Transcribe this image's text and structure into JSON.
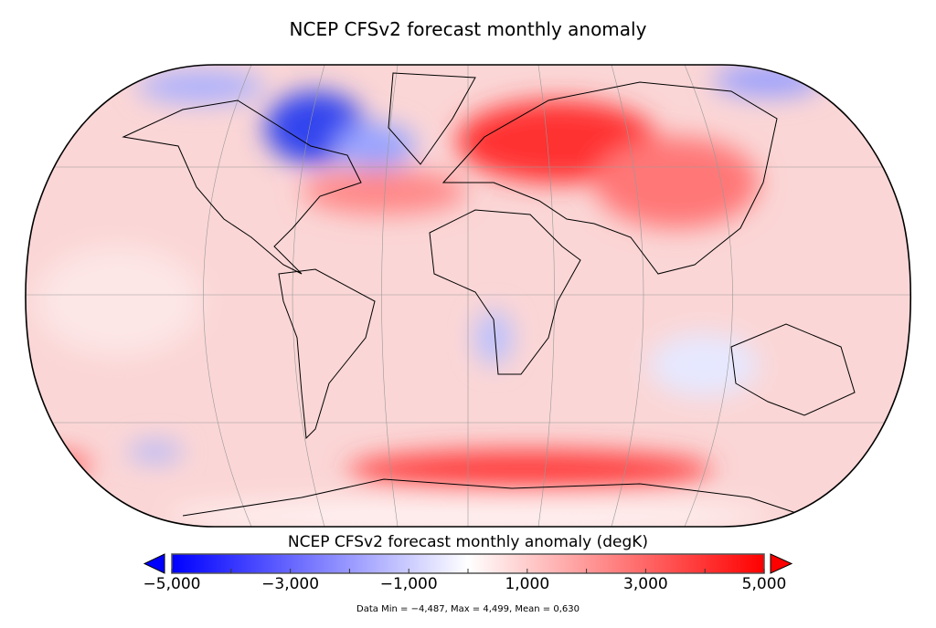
{
  "title": "NCEP CFSv2 forecast monthly anomaly",
  "colorbar": {
    "label": "NCEP CFSv2 forecast monthly anomaly (degK)",
    "min": -5000,
    "max": 5000,
    "tick_labels": [
      "−5,000",
      "−3,000",
      "−1,000",
      "1,000",
      "3,000",
      "5,000"
    ],
    "tick_values": [
      -5000,
      -3000,
      -1000,
      1000,
      3000,
      5000
    ],
    "minor_tick_values": [
      -4000,
      -2000,
      0,
      2000,
      4000
    ],
    "colors": {
      "low": "#0000ff",
      "mid": "#ffffff",
      "high": "#ff0000"
    },
    "extend": "both"
  },
  "stats": "Data Min = −4,487, Max = 4,499, Mean = 0,630",
  "map": {
    "projection": "Robinson",
    "background_anomaly_color": "#fbd3d3",
    "gridlines": true,
    "coastlines": true
  }
}
